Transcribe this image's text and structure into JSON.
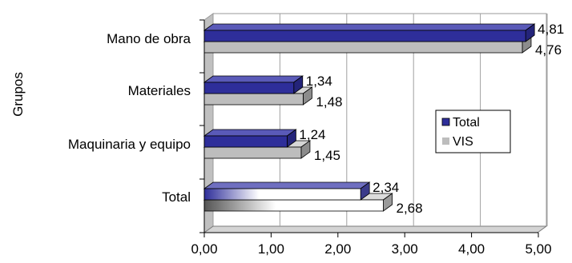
{
  "chart_data": {
    "type": "bar",
    "orientation": "horizontal",
    "categories": [
      "Mano de obra",
      "Materiales",
      "Maquinaria y equipo",
      "Total"
    ],
    "series": [
      {
        "name": "Total",
        "values": [
          4.81,
          1.34,
          1.24,
          2.34
        ],
        "labels": [
          "4,81",
          "1,34",
          "1,24",
          "2,34"
        ]
      },
      {
        "name": "VIS",
        "values": [
          4.76,
          1.48,
          1.45,
          2.68
        ],
        "labels": [
          "4,76",
          "1,48",
          "1,45",
          "2,68"
        ]
      }
    ],
    "x_ticks": [
      0,
      1,
      2,
      3,
      4,
      5
    ],
    "x_tick_labels": [
      "0,00",
      "1,00",
      "2,00",
      "3,00",
      "4,00",
      "5,00"
    ],
    "xlim": [
      0,
      5
    ],
    "ylabel": "Grupos",
    "grid": true,
    "legend_position": "right",
    "colors": {
      "Total": "#2e2e9a",
      "VIS": "#bdbdbd"
    }
  }
}
